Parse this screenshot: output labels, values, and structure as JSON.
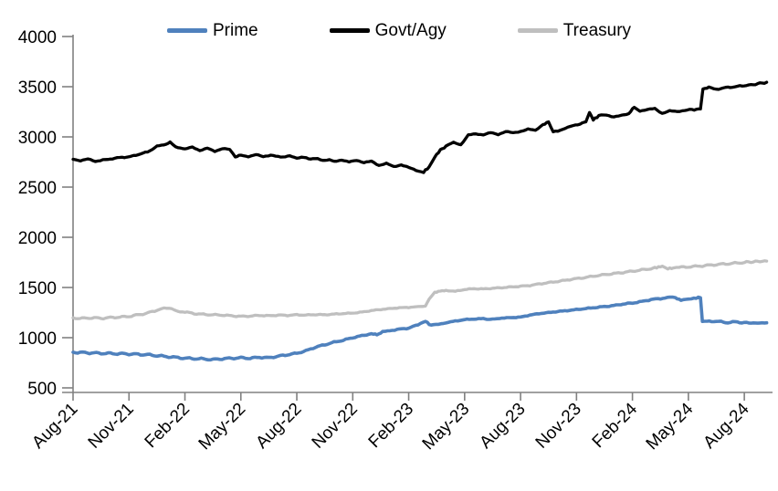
{
  "chart_data": {
    "type": "line",
    "title": "",
    "xlabel": "",
    "ylabel": "",
    "legend_position": "top",
    "grid": false,
    "axis_color": "#808080",
    "text_color": "#000000",
    "ylim": [
      500,
      4000
    ],
    "y_ticks": [
      500,
      1000,
      1500,
      2000,
      2500,
      3000,
      3500,
      4000
    ],
    "x_tick_labels": [
      "Aug-21",
      "Nov-21",
      "Feb-22",
      "May-22",
      "Aug-22",
      "Nov-22",
      "Feb-23",
      "May-23",
      "Aug-23",
      "Nov-23",
      "Feb-24",
      "May-24",
      "Aug-24"
    ],
    "x_tick_months": [
      0,
      3,
      6,
      9,
      12,
      15,
      18,
      21,
      24,
      27,
      30,
      33,
      36
    ],
    "x_range_months": [
      0,
      37.2
    ],
    "series": [
      {
        "name": "Prime",
        "color": "#4f81bd",
        "width": 3.6,
        "points": [
          [
            0,
            855
          ],
          [
            1,
            848
          ],
          [
            2,
            842
          ],
          [
            3,
            838
          ],
          [
            4,
            830
          ],
          [
            5,
            812
          ],
          [
            6,
            795
          ],
          [
            7,
            788
          ],
          [
            7.5,
            782
          ],
          [
            8,
            790
          ],
          [
            9,
            800
          ],
          [
            9.5,
            795
          ],
          [
            10,
            805
          ],
          [
            10.5,
            800
          ],
          [
            11,
            815
          ],
          [
            11.5,
            830
          ],
          [
            12,
            845
          ],
          [
            12.5,
            870
          ],
          [
            13,
            905
          ],
          [
            13.5,
            930
          ],
          [
            14,
            955
          ],
          [
            14.5,
            975
          ],
          [
            15,
            1000
          ],
          [
            15.5,
            1020
          ],
          [
            16,
            1040
          ],
          [
            16.3,
            1030
          ],
          [
            16.6,
            1055
          ],
          [
            17,
            1070
          ],
          [
            17.5,
            1085
          ],
          [
            18,
            1095
          ],
          [
            18.5,
            1130
          ],
          [
            18.9,
            1165
          ],
          [
            19.2,
            1120
          ],
          [
            19.6,
            1135
          ],
          [
            20,
            1150
          ],
          [
            20.5,
            1165
          ],
          [
            21,
            1180
          ],
          [
            21.5,
            1185
          ],
          [
            22,
            1190
          ],
          [
            22.3,
            1180
          ],
          [
            22.6,
            1190
          ],
          [
            23,
            1195
          ],
          [
            23.5,
            1200
          ],
          [
            24,
            1205
          ],
          [
            24.5,
            1225
          ],
          [
            25,
            1240
          ],
          [
            25.5,
            1250
          ],
          [
            26,
            1260
          ],
          [
            26.5,
            1270
          ],
          [
            27,
            1280
          ],
          [
            27.5,
            1290
          ],
          [
            28,
            1300
          ],
          [
            28.5,
            1310
          ],
          [
            29,
            1320
          ],
          [
            29.5,
            1335
          ],
          [
            30,
            1345
          ],
          [
            30.5,
            1360
          ],
          [
            31,
            1380
          ],
          [
            31.5,
            1390
          ],
          [
            32,
            1400
          ],
          [
            32.3,
            1395
          ],
          [
            32.6,
            1375
          ],
          [
            33,
            1390
          ],
          [
            33.3,
            1398
          ],
          [
            33.65,
            1398
          ],
          [
            33.75,
            1165
          ],
          [
            34,
            1160
          ],
          [
            34.5,
            1165
          ],
          [
            35,
            1150
          ],
          [
            35.5,
            1157
          ],
          [
            36,
            1150
          ],
          [
            36.6,
            1145
          ],
          [
            37.2,
            1148
          ]
        ]
      },
      {
        "name": "Govt/Agy",
        "color": "#000000",
        "width": 3.3,
        "points": [
          [
            0,
            2780
          ],
          [
            0.4,
            2760
          ],
          [
            0.8,
            2775
          ],
          [
            1.2,
            2755
          ],
          [
            1.6,
            2775
          ],
          [
            2,
            2780
          ],
          [
            2.5,
            2795
          ],
          [
            3,
            2800
          ],
          [
            3.5,
            2825
          ],
          [
            4,
            2850
          ],
          [
            4.5,
            2905
          ],
          [
            5,
            2930
          ],
          [
            5.2,
            2945
          ],
          [
            5.5,
            2905
          ],
          [
            6,
            2875
          ],
          [
            6.4,
            2900
          ],
          [
            6.8,
            2870
          ],
          [
            7.2,
            2890
          ],
          [
            7.6,
            2855
          ],
          [
            8,
            2880
          ],
          [
            8.4,
            2870
          ],
          [
            8.7,
            2800
          ],
          [
            9,
            2820
          ],
          [
            9.4,
            2810
          ],
          [
            9.8,
            2825
          ],
          [
            10.2,
            2800
          ],
          [
            10.6,
            2815
          ],
          [
            11,
            2800
          ],
          [
            11.5,
            2808
          ],
          [
            12,
            2795
          ],
          [
            12.5,
            2790
          ],
          [
            13,
            2780
          ],
          [
            13.5,
            2770
          ],
          [
            14,
            2760
          ],
          [
            14.4,
            2775
          ],
          [
            14.8,
            2750
          ],
          [
            15.2,
            2765
          ],
          [
            15.6,
            2740
          ],
          [
            16,
            2755
          ],
          [
            16.4,
            2720
          ],
          [
            16.8,
            2740
          ],
          [
            17.2,
            2705
          ],
          [
            17.6,
            2720
          ],
          [
            18,
            2690
          ],
          [
            18.4,
            2665
          ],
          [
            18.8,
            2650
          ],
          [
            19.1,
            2700
          ],
          [
            19.4,
            2800
          ],
          [
            19.7,
            2870
          ],
          [
            20,
            2905
          ],
          [
            20.4,
            2940
          ],
          [
            20.8,
            2920
          ],
          [
            21.2,
            3020
          ],
          [
            21.6,
            3035
          ],
          [
            22,
            3025
          ],
          [
            22.4,
            3040
          ],
          [
            22.8,
            3020
          ],
          [
            23.2,
            3050
          ],
          [
            23.6,
            3040
          ],
          [
            24,
            3060
          ],
          [
            24.4,
            3080
          ],
          [
            24.8,
            3065
          ],
          [
            25.2,
            3120
          ],
          [
            25.5,
            3150
          ],
          [
            25.75,
            3045
          ],
          [
            26,
            3060
          ],
          [
            26.4,
            3090
          ],
          [
            26.8,
            3115
          ],
          [
            27.2,
            3130
          ],
          [
            27.5,
            3150
          ],
          [
            27.7,
            3245
          ],
          [
            27.9,
            3170
          ],
          [
            28.2,
            3210
          ],
          [
            28.6,
            3220
          ],
          [
            29,
            3205
          ],
          [
            29.4,
            3215
          ],
          [
            29.8,
            3230
          ],
          [
            30.1,
            3300
          ],
          [
            30.4,
            3255
          ],
          [
            30.8,
            3270
          ],
          [
            31.2,
            3285
          ],
          [
            31.6,
            3240
          ],
          [
            32,
            3260
          ],
          [
            32.4,
            3250
          ],
          [
            32.8,
            3260
          ],
          [
            33.2,
            3270
          ],
          [
            33.65,
            3278
          ],
          [
            33.78,
            3480
          ],
          [
            34.1,
            3490
          ],
          [
            34.5,
            3475
          ],
          [
            35,
            3490
          ],
          [
            35.5,
            3500
          ],
          [
            36,
            3510
          ],
          [
            36.6,
            3525
          ],
          [
            37.2,
            3545
          ]
        ]
      },
      {
        "name": "Treasury",
        "color": "#bfbfbf",
        "width": 3.3,
        "points": [
          [
            0,
            1197
          ],
          [
            0.5,
            1192
          ],
          [
            1,
            1198
          ],
          [
            1.5,
            1193
          ],
          [
            2,
            1200
          ],
          [
            2.5,
            1205
          ],
          [
            3,
            1212
          ],
          [
            3.5,
            1228
          ],
          [
            4,
            1245
          ],
          [
            4.5,
            1275
          ],
          [
            5,
            1295
          ],
          [
            5.3,
            1290
          ],
          [
            5.6,
            1270
          ],
          [
            6,
            1255
          ],
          [
            6.5,
            1240
          ],
          [
            7,
            1232
          ],
          [
            7.5,
            1228
          ],
          [
            8,
            1225
          ],
          [
            8.5,
            1218
          ],
          [
            9,
            1212
          ],
          [
            9.5,
            1215
          ],
          [
            10,
            1222
          ],
          [
            10.5,
            1218
          ],
          [
            11,
            1225
          ],
          [
            11.5,
            1222
          ],
          [
            12,
            1228
          ],
          [
            12.5,
            1225
          ],
          [
            13,
            1230
          ],
          [
            13.5,
            1228
          ],
          [
            14,
            1235
          ],
          [
            14.5,
            1240
          ],
          [
            15,
            1245
          ],
          [
            15.5,
            1255
          ],
          [
            16,
            1270
          ],
          [
            16.5,
            1280
          ],
          [
            17,
            1290
          ],
          [
            17.5,
            1298
          ],
          [
            18,
            1302
          ],
          [
            18.5,
            1308
          ],
          [
            18.9,
            1312
          ],
          [
            19.1,
            1390
          ],
          [
            19.4,
            1450
          ],
          [
            19.7,
            1465
          ],
          [
            20,
            1470
          ],
          [
            20.5,
            1462
          ],
          [
            21,
            1480
          ],
          [
            21.5,
            1488
          ],
          [
            22,
            1485
          ],
          [
            22.5,
            1492
          ],
          [
            23,
            1498
          ],
          [
            23.5,
            1505
          ],
          [
            24,
            1512
          ],
          [
            24.5,
            1520
          ],
          [
            25,
            1535
          ],
          [
            25.5,
            1548
          ],
          [
            26,
            1560
          ],
          [
            26.5,
            1575
          ],
          [
            27,
            1588
          ],
          [
            27.5,
            1600
          ],
          [
            28,
            1615
          ],
          [
            28.5,
            1628
          ],
          [
            29,
            1638
          ],
          [
            29.5,
            1650
          ],
          [
            30,
            1662
          ],
          [
            30.5,
            1675
          ],
          [
            31,
            1688
          ],
          [
            31.3,
            1700
          ],
          [
            31.6,
            1710
          ],
          [
            31.9,
            1688
          ],
          [
            32.2,
            1695
          ],
          [
            32.5,
            1700
          ],
          [
            33,
            1705
          ],
          [
            33.5,
            1712
          ],
          [
            34,
            1720
          ],
          [
            34.5,
            1728
          ],
          [
            35,
            1735
          ],
          [
            35.5,
            1742
          ],
          [
            36,
            1750
          ],
          [
            36.6,
            1758
          ],
          [
            37.2,
            1763
          ]
        ]
      }
    ]
  },
  "legend": {
    "prime_label": "Prime",
    "govt_label": "Govt/Agy",
    "treasury_label": "Treasury"
  }
}
